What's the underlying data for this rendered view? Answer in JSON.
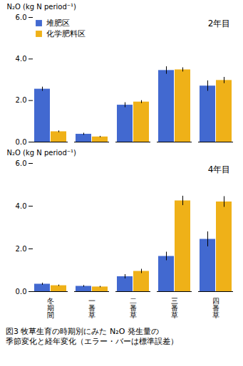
{
  "chart_data": [
    {
      "type": "bar",
      "title": "2年目",
      "categories": [
        "冬\n期\n間",
        "一\n番\n草",
        "二\n番\n草",
        "三\n番\n草",
        "四\n番\n草"
      ],
      "ylabel": "N₂O (kg N period⁻¹)",
      "ylim": [
        0,
        6
      ],
      "yticks": [
        0,
        2,
        4,
        6
      ],
      "legend": "upper left",
      "tick_labels": "y",
      "series": [
        {
          "name": "堆肥区",
          "values": [
            2.55,
            0.38,
            1.78,
            3.45,
            2.7
          ],
          "errors": [
            0.1,
            0.05,
            0.12,
            0.18,
            0.25
          ]
        },
        {
          "name": "化学肥料区",
          "values": [
            0.5,
            0.25,
            1.93,
            3.48,
            2.97
          ],
          "errors": [
            0.04,
            0.03,
            0.07,
            0.1,
            0.15
          ]
        }
      ]
    },
    {
      "type": "bar",
      "title": "4年目",
      "categories": [
        "冬\n期\n間",
        "一\n番\n草",
        "二\n番\n草",
        "三\n番\n草",
        "四\n番\n草"
      ],
      "ylabel": "N₂O (kg N period⁻¹)",
      "ylim": [
        0,
        6
      ],
      "yticks": [
        0,
        2,
        4,
        6
      ],
      "series": [
        {
          "name": "堆肥区",
          "values": [
            0.35,
            0.25,
            0.7,
            1.65,
            2.45
          ],
          "errors": [
            0.05,
            0.04,
            0.1,
            0.2,
            0.35
          ]
        },
        {
          "name": "化学肥料区",
          "values": [
            0.28,
            0.22,
            0.95,
            4.25,
            4.2
          ],
          "errors": [
            0.03,
            0.03,
            0.1,
            0.22,
            0.25
          ]
        }
      ],
      "caption": "図3  牧草生育の時期別にみた N₂O 発生量の\n季節変化と経年変化（エラー・バーは標準誤差）"
    }
  ]
}
